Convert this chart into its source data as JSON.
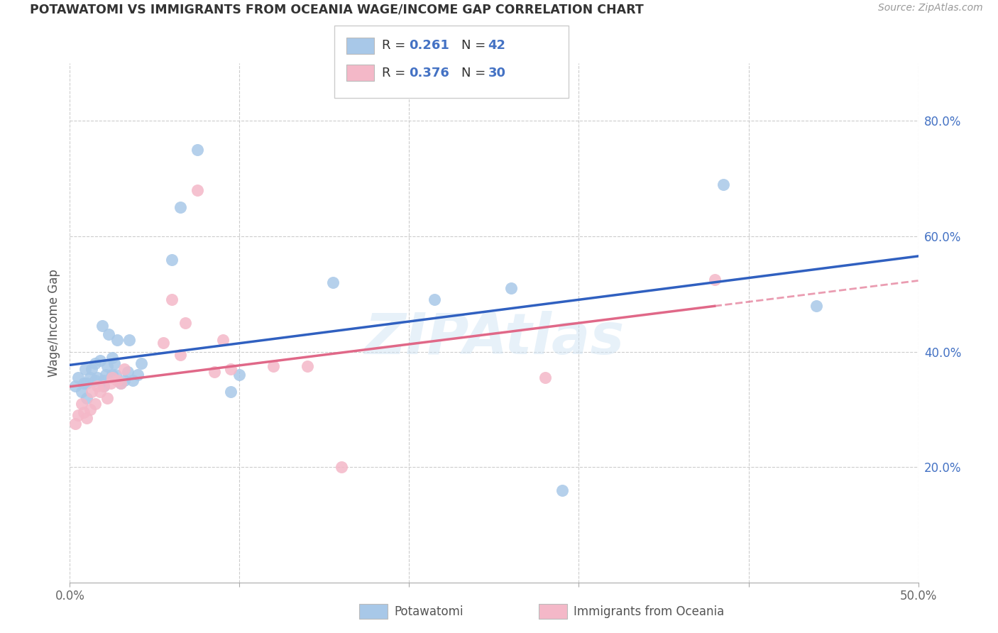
{
  "title": "POTAWATOMI VS IMMIGRANTS FROM OCEANIA WAGE/INCOME GAP CORRELATION CHART",
  "source": "Source: ZipAtlas.com",
  "ylabel": "Wage/Income Gap",
  "xmin": 0.0,
  "xmax": 0.5,
  "ymin": 0.0,
  "ymax": 0.9,
  "xtick_positions": [
    0.0,
    0.1,
    0.2,
    0.3,
    0.4,
    0.5
  ],
  "xtick_labels": [
    "0.0%",
    "",
    "",
    "",
    "",
    "50.0%"
  ],
  "yticks_right": [
    0.2,
    0.4,
    0.6,
    0.8
  ],
  "ytick_labels_right": [
    "20.0%",
    "40.0%",
    "60.0%",
    "80.0%"
  ],
  "color_blue": "#a8c8e8",
  "color_pink": "#f4b8c8",
  "color_blue_line": "#3060c0",
  "color_pink_line": "#e06888",
  "color_text_blue": "#4472c4",
  "watermark": "ZIPAtlas",
  "blue_x": [
    0.003,
    0.005,
    0.007,
    0.008,
    0.009,
    0.01,
    0.01,
    0.012,
    0.013,
    0.015,
    0.015,
    0.016,
    0.018,
    0.019,
    0.02,
    0.02,
    0.021,
    0.022,
    0.023,
    0.025,
    0.025,
    0.026,
    0.027,
    0.028,
    0.03,
    0.032,
    0.034,
    0.035,
    0.037,
    0.04,
    0.042,
    0.06,
    0.065,
    0.075,
    0.095,
    0.1,
    0.155,
    0.215,
    0.26,
    0.29,
    0.385,
    0.44
  ],
  "blue_y": [
    0.34,
    0.355,
    0.33,
    0.345,
    0.37,
    0.32,
    0.345,
    0.355,
    0.37,
    0.35,
    0.38,
    0.355,
    0.385,
    0.445,
    0.35,
    0.34,
    0.36,
    0.375,
    0.43,
    0.36,
    0.39,
    0.38,
    0.36,
    0.42,
    0.345,
    0.35,
    0.365,
    0.42,
    0.35,
    0.36,
    0.38,
    0.56,
    0.65,
    0.75,
    0.33,
    0.36,
    0.52,
    0.49,
    0.51,
    0.16,
    0.69,
    0.48
  ],
  "pink_x": [
    0.003,
    0.005,
    0.007,
    0.008,
    0.01,
    0.012,
    0.013,
    0.015,
    0.016,
    0.018,
    0.02,
    0.022,
    0.024,
    0.025,
    0.028,
    0.03,
    0.032,
    0.055,
    0.06,
    0.065,
    0.068,
    0.075,
    0.085,
    0.09,
    0.095,
    0.12,
    0.14,
    0.16,
    0.28,
    0.38
  ],
  "pink_y": [
    0.275,
    0.29,
    0.31,
    0.295,
    0.285,
    0.3,
    0.33,
    0.31,
    0.34,
    0.33,
    0.34,
    0.32,
    0.345,
    0.355,
    0.35,
    0.345,
    0.37,
    0.415,
    0.49,
    0.395,
    0.45,
    0.68,
    0.365,
    0.42,
    0.37,
    0.375,
    0.375,
    0.2,
    0.355,
    0.525
  ]
}
